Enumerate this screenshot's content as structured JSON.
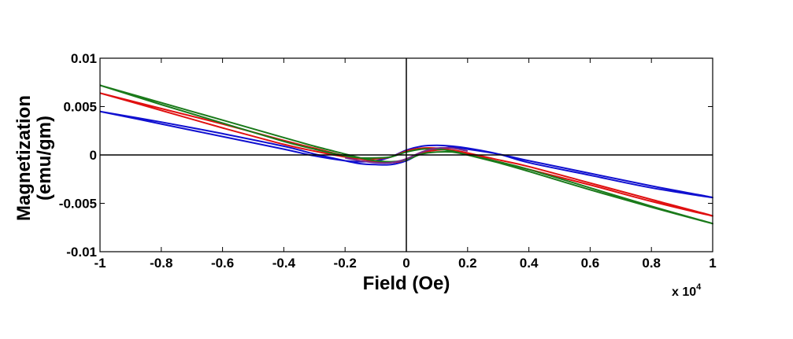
{
  "chart_data": {
    "type": "line",
    "title": "",
    "xlabel": "Field (Oe)",
    "ylabel_lines": [
      "Magnetization",
      "(emu/gm)"
    ],
    "x_multiplier_label": "x 10",
    "x_multiplier_exponent": "4",
    "xlim": [
      -1,
      1
    ],
    "ylim": [
      -0.01,
      0.01
    ],
    "x_ticks": [
      -1,
      -0.8,
      -0.6,
      -0.4,
      -0.2,
      0,
      0.2,
      0.4,
      0.6,
      0.8,
      1
    ],
    "x_tick_labels": [
      "-1",
      "-0.8",
      "-0.6",
      "-0.4",
      "-0.2",
      "0",
      "0.2",
      "0.4",
      "0.6",
      "0.8",
      "1"
    ],
    "y_ticks": [
      -0.01,
      -0.005,
      0,
      0.005,
      0.01
    ],
    "y_tick_labels": [
      "-0.01",
      "-0.005",
      "0",
      "0.005",
      "0.01"
    ],
    "reference_lines": {
      "x": 0,
      "y": 0
    },
    "grid": false,
    "series": [
      {
        "name": "blue",
        "color": "#1010d0",
        "x": [
          -1,
          -0.8,
          -0.6,
          -0.4,
          -0.3,
          -0.2,
          -0.15,
          -0.1,
          -0.05,
          0,
          0.05,
          0.1,
          0.15,
          0.2,
          0.3,
          0.4,
          0.6,
          0.8,
          1,
          0.8,
          0.6,
          0.4,
          0.3,
          0.2,
          0.15,
          0.1,
          0.05,
          0,
          -0.05,
          -0.1,
          -0.15,
          -0.2,
          -0.3,
          -0.4,
          -0.6,
          -0.8,
          -1
        ],
        "y": [
          0.0045,
          0.0034,
          0.0022,
          0.0009,
          0.0001,
          -0.0006,
          -0.0009,
          -0.001,
          -0.001,
          -0.0006,
          0.0002,
          0.0006,
          0.0008,
          0.0006,
          0.0001,
          -0.0006,
          -0.0019,
          -0.0032,
          -0.0044,
          -0.0034,
          -0.0021,
          -0.0008,
          0.0001,
          0.0007,
          0.0009,
          0.001,
          0.0009,
          0.0005,
          -0.0002,
          -0.0006,
          -0.0007,
          -0.0006,
          -0.0001,
          0.0006,
          0.0019,
          0.0032,
          0.0045
        ]
      },
      {
        "name": "red",
        "color": "#e01010",
        "x": [
          -1,
          -0.8,
          -0.6,
          -0.4,
          -0.3,
          -0.2,
          -0.15,
          -0.1,
          -0.05,
          0,
          0.05,
          0.1,
          0.15,
          0.2,
          0.3,
          0.4,
          0.6,
          0.8,
          1,
          0.8,
          0.6,
          0.4,
          0.3,
          0.2,
          0.15,
          0.1,
          0.05,
          0,
          -0.05,
          -0.1,
          -0.15,
          -0.2,
          -0.3,
          -0.4,
          -0.6,
          -0.8,
          -1
        ],
        "y": [
          0.0064,
          0.0048,
          0.0032,
          0.0015,
          0.0007,
          -0.0001,
          -0.0004,
          -0.0007,
          -0.0008,
          -0.0005,
          0.0002,
          0.0005,
          0.0005,
          0.0002,
          -0.0005,
          -0.0012,
          -0.0029,
          -0.0046,
          -0.0063,
          -0.0048,
          -0.0031,
          -0.0015,
          -0.0007,
          0.0001,
          0.0005,
          0.0007,
          0.0007,
          0.0004,
          -0.0002,
          -0.0004,
          -0.0004,
          -0.0002,
          0.0004,
          0.0011,
          0.0028,
          0.0046,
          0.0064
        ]
      },
      {
        "name": "green",
        "color": "#1a7a1a",
        "x": [
          -1,
          -0.8,
          -0.6,
          -0.4,
          -0.3,
          -0.2,
          -0.15,
          -0.1,
          -0.05,
          0,
          0.05,
          0.1,
          0.15,
          0.2,
          0.3,
          0.4,
          0.6,
          0.8,
          1,
          0.8,
          0.6,
          0.4,
          0.3,
          0.2,
          0.15,
          0.1,
          0.05,
          0,
          -0.05,
          -0.1,
          -0.15,
          -0.2,
          -0.3,
          -0.4,
          -0.6,
          -0.8,
          -1
        ],
        "y": [
          0.0072,
          0.0054,
          0.0036,
          0.0018,
          0.0009,
          0.0001,
          -0.0003,
          -0.0006,
          -0.0007,
          -0.0005,
          0.0001,
          0.0003,
          0.0003,
          0,
          -0.0007,
          -0.0015,
          -0.0034,
          -0.0053,
          -0.0071,
          -0.0054,
          -0.0036,
          -0.0017,
          -0.0008,
          0,
          0.0004,
          0.0006,
          0.0006,
          0.0003,
          -0.0002,
          -0.0003,
          -0.0003,
          -0.0001,
          0.0006,
          0.0014,
          0.0033,
          0.0052,
          0.0072
        ]
      },
      {
        "name": "purple",
        "color": "#7a2a8a",
        "x": [
          -0.2,
          -0.15,
          -0.1,
          -0.05,
          0,
          0.05,
          0.1,
          0.15,
          0.2
        ],
        "y": [
          -0.0003,
          -0.0006,
          -0.0008,
          -0.0008,
          -0.0004,
          0.0003,
          0.0007,
          0.0007,
          0.0004
        ]
      }
    ]
  }
}
